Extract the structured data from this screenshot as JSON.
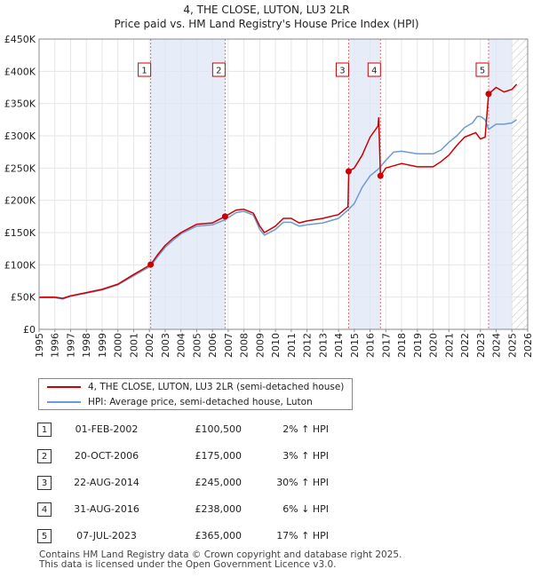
{
  "chart_data": {
    "type": "line",
    "title": "4, THE CLOSE, LUTON, LU3 2LR",
    "subtitle": "Price paid vs. HM Land Registry's House Price Index (HPI)",
    "xlabel": "",
    "ylabel": "",
    "xlim": [
      1995.0,
      2026.0
    ],
    "ylim": [
      0,
      450000
    ],
    "y_ticks": [
      0,
      50000,
      100000,
      150000,
      200000,
      250000,
      300000,
      350000,
      400000,
      450000
    ],
    "y_tick_labels": [
      "£0",
      "£50K",
      "£100K",
      "£150K",
      "£200K",
      "£250K",
      "£300K",
      "£350K",
      "£400K",
      "£450K"
    ],
    "x_ticks": [
      1995,
      1996,
      1997,
      1998,
      1999,
      2000,
      2001,
      2002,
      2003,
      2004,
      2005,
      2006,
      2007,
      2008,
      2009,
      2010,
      2011,
      2012,
      2013,
      2014,
      2015,
      2016,
      2017,
      2018,
      2019,
      2020,
      2021,
      2022,
      2023,
      2024,
      2025,
      2026
    ],
    "x_tick_labels": [
      "1995",
      "1996",
      "1997",
      "1998",
      "1999",
      "2000",
      "2001",
      "2002",
      "2003",
      "2004",
      "2005",
      "2006",
      "2007",
      "2008",
      "2009",
      "2010",
      "2011",
      "2012",
      "2013",
      "2014",
      "2015",
      "2016",
      "2017",
      "2018",
      "2019",
      "2020",
      "2021",
      "2022",
      "2023",
      "2024",
      "2025",
      "2026"
    ],
    "grid": true,
    "series": [
      {
        "name": "4, THE CLOSE, LUTON, LU3 2LR (semi-detached house)",
        "color": "#cc0000",
        "x": [
          1995.0,
          1996.0,
          1996.5,
          1997.0,
          1998.0,
          1999.0,
          2000.0,
          2001.0,
          2001.5,
          2002.08,
          2002.5,
          2003.0,
          2003.5,
          2004.0,
          2005.0,
          2006.0,
          2006.8,
          2007.5,
          2008.0,
          2008.6,
          2009.0,
          2009.3,
          2010.0,
          2010.5,
          2011.0,
          2011.5,
          2012.0,
          2013.0,
          2014.0,
          2014.6,
          2014.65,
          2015.0,
          2015.5,
          2016.0,
          2016.5,
          2016.55,
          2016.66,
          2017.0,
          2018.0,
          2019.0,
          2020.0,
          2020.5,
          2021.0,
          2021.5,
          2022.0,
          2022.7,
          2023.0,
          2023.3,
          2023.52,
          2024.0,
          2024.5,
          2025.0,
          2025.3
        ],
        "values": [
          50000,
          50000,
          48000,
          52000,
          57000,
          62000,
          70000,
          85000,
          92000,
          100500,
          115000,
          130000,
          141000,
          150000,
          163000,
          165000,
          175000,
          185000,
          186000,
          180000,
          160000,
          150000,
          160000,
          172000,
          172000,
          165000,
          168000,
          172000,
          178000,
          190000,
          245000,
          250000,
          270000,
          298000,
          315000,
          328000,
          238000,
          250000,
          257000,
          252000,
          252000,
          260000,
          270000,
          285000,
          298000,
          305000,
          295000,
          298000,
          365000,
          375000,
          368000,
          372000,
          380000
        ]
      },
      {
        "name": "HPI: Average price, semi-detached house, Luton",
        "color": "#6c9bd2",
        "x": [
          1995.0,
          1996.0,
          1996.5,
          1997.0,
          1998.0,
          1999.0,
          2000.0,
          2001.0,
          2001.5,
          2002.08,
          2002.5,
          2003.0,
          2003.5,
          2004.0,
          2005.0,
          2006.0,
          2006.8,
          2007.5,
          2008.0,
          2008.6,
          2009.0,
          2009.3,
          2010.0,
          2010.5,
          2011.0,
          2011.5,
          2012.0,
          2013.0,
          2014.0,
          2014.6,
          2015.0,
          2015.5,
          2016.0,
          2016.5,
          2016.66,
          2017.0,
          2017.5,
          2018.0,
          2019.0,
          2020.0,
          2020.5,
          2021.0,
          2021.5,
          2022.0,
          2022.5,
          2022.8,
          2023.0,
          2023.3,
          2023.52,
          2024.0,
          2024.5,
          2025.0,
          2025.3
        ],
        "values": [
          49000,
          49000,
          47000,
          51000,
          56000,
          61000,
          69000,
          83000,
          90000,
          98000,
          112000,
          127000,
          138000,
          148000,
          160000,
          162000,
          170000,
          181000,
          183000,
          177000,
          155000,
          146000,
          155000,
          166000,
          166000,
          160000,
          162000,
          165000,
          172000,
          185000,
          195000,
          220000,
          238000,
          248000,
          252000,
          262000,
          275000,
          276000,
          272000,
          272000,
          278000,
          290000,
          300000,
          313000,
          320000,
          330000,
          330000,
          325000,
          310000,
          318000,
          318000,
          320000,
          325000
        ]
      }
    ],
    "transactions": [
      {
        "id": "1",
        "x": 2002.08,
        "value": 100500
      },
      {
        "id": "2",
        "x": 2006.8,
        "value": 175000
      },
      {
        "id": "3",
        "x": 2014.64,
        "value": 245000
      },
      {
        "id": "4",
        "x": 2016.66,
        "value": 238000
      },
      {
        "id": "5",
        "x": 2023.52,
        "value": 365000
      }
    ],
    "shaded_spans": [
      [
        2002.08,
        2006.8
      ],
      [
        2014.64,
        2016.66
      ],
      [
        2023.52,
        2025.0
      ]
    ],
    "hatch_span": [
      2025.0,
      2026.0
    ]
  },
  "legend": {
    "property_label": "4, THE CLOSE, LUTON, LU3 2LR (semi-detached house)",
    "hpi_label": "HPI: Average price, semi-detached house, Luton",
    "property_color": "#cc0000",
    "hpi_color": "#6c9bd2"
  },
  "table": [
    {
      "num": "1",
      "date": "01-FEB-2002",
      "price": "£100,500",
      "hpi": "2% ↑ HPI"
    },
    {
      "num": "2",
      "date": "20-OCT-2006",
      "price": "£175,000",
      "hpi": "3% ↑ HPI"
    },
    {
      "num": "3",
      "date": "22-AUG-2014",
      "price": "£245,000",
      "hpi": "30% ↑ HPI"
    },
    {
      "num": "4",
      "date": "31-AUG-2016",
      "price": "£238,000",
      "hpi": "6% ↓ HPI"
    },
    {
      "num": "5",
      "date": "07-JUL-2023",
      "price": "£365,000",
      "hpi": "17% ↑ HPI"
    }
  ],
  "footer": {
    "line1": "Contains HM Land Registry data © Crown copyright and database right 2025.",
    "line2": "This data is licensed under the Open Government Licence v3.0."
  }
}
